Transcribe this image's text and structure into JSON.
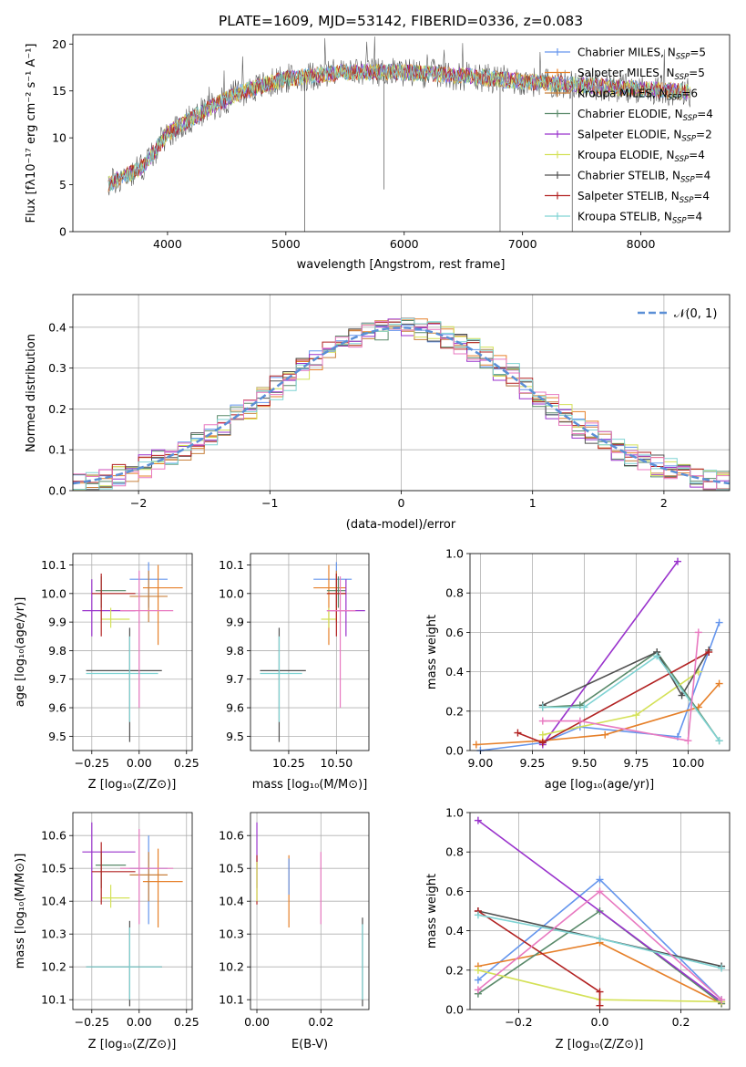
{
  "colors": {
    "chabrier_miles": "#6495ed",
    "salpeter_miles": "#e6802a",
    "kroupa_miles": "#c8803c",
    "chabrier_elodie": "#5a8a6a",
    "salpeter_elodie": "#9932cc",
    "kroupa_elodie": "#d4e157",
    "chabrier_stelib": "#505050",
    "salpeter_stelib": "#b22222",
    "kroupa_stelib": "#7fd3d3",
    "pink": "#e879c0",
    "gauss": "#5b8fd6"
  },
  "chart_data": [
    {
      "id": "spectrum",
      "type": "line",
      "title": "PLATE=1609, MJD=53142, FIBERID=0336, z=0.083",
      "xlabel": "wavelength [Angstrom, rest frame]",
      "ylabel": "Flux [fλ10⁻¹⁷ erg cm⁻² s⁻¹ A⁻¹]",
      "xlim": [
        3200,
        8750
      ],
      "ylim": [
        0,
        21
      ],
      "xticks": [
        4000,
        5000,
        6000,
        7000,
        8000
      ],
      "yticks": [
        0,
        5,
        10,
        15,
        20
      ],
      "legend_position": "right",
      "legend": [
        {
          "name": "Chabrier MILES, N_SSP=5",
          "text": "Chabrier MILES, N",
          "sub": "SSP",
          "tail": "=5",
          "color_key": "chabrier_miles"
        },
        {
          "name": "Salpeter MILES, N_SSP=5",
          "text": "Salpeter MILES, N",
          "sub": "SSP",
          "tail": "=5",
          "color_key": "salpeter_miles"
        },
        {
          "name": "Kroupa MILES, N_SSP=6",
          "text": "Kroupa MILES, N",
          "sub": "SSP",
          "tail": "=6",
          "color_key": "kroupa_miles"
        },
        {
          "name": "Chabrier ELODIE, N_SSP=4",
          "text": "Chabrier ELODIE, N",
          "sub": "SSP",
          "tail": "=4",
          "color_key": "chabrier_elodie"
        },
        {
          "name": "Salpeter ELODIE, N_SSP=2",
          "text": "Salpeter ELODIE, N",
          "sub": "SSP",
          "tail": "=2",
          "color_key": "salpeter_elodie"
        },
        {
          "name": "Kroupa ELODIE, N_SSP=4",
          "text": "Kroupa ELODIE, N",
          "sub": "SSP",
          "tail": "=4",
          "color_key": "kroupa_elodie"
        },
        {
          "name": "Chabrier STELIB, N_SSP=4",
          "text": "Chabrier STELIB, N",
          "sub": "SSP",
          "tail": "=4",
          "color_key": "chabrier_stelib"
        },
        {
          "name": "Salpeter STELIB, N_SSP=4",
          "text": "Salpeter STELIB, N",
          "sub": "SSP",
          "tail": "=4",
          "color_key": "salpeter_stelib"
        },
        {
          "name": "Kroupa STELIB, N_SSP=4",
          "text": "Kroupa STELIB, N",
          "sub": "SSP",
          "tail": "=4",
          "color_key": "kroupa_stelib"
        }
      ],
      "continuum": [
        [
          3500,
          5.0
        ],
        [
          3800,
          7.0
        ],
        [
          4000,
          10.5
        ],
        [
          4300,
          12.8
        ],
        [
          4600,
          14.8
        ],
        [
          5000,
          16.3
        ],
        [
          5500,
          17.0
        ],
        [
          6000,
          17.0
        ],
        [
          6500,
          16.6
        ],
        [
          7000,
          16.0
        ],
        [
          7500,
          15.6
        ],
        [
          8000,
          15.2
        ],
        [
          8500,
          14.8
        ]
      ],
      "drops": [
        [
          5160,
          0
        ],
        [
          5830,
          4.5
        ],
        [
          6810,
          0
        ],
        [
          7420,
          0
        ]
      ]
    },
    {
      "id": "residuals",
      "type": "step-histogram",
      "xlabel": "(data-model)/error",
      "ylabel": "Normed distribution",
      "xlim": [
        -2.5,
        2.5
      ],
      "ylim": [
        0,
        0.48
      ],
      "xticks": [
        -2,
        -1,
        0,
        1,
        2
      ],
      "xtick_labels": [
        "−2",
        "−1",
        "0",
        "1",
        "2"
      ],
      "yticks": [
        0.0,
        0.1,
        0.2,
        0.3,
        0.4
      ],
      "bin_width": 0.1,
      "legend_position": "top-right",
      "legend": [
        {
          "name": "N(0,1)",
          "text": "𝒩(0, 1)",
          "color_key": "gauss"
        }
      ]
    },
    {
      "id": "z-age",
      "type": "errorbar",
      "xlabel": "Z [log₁₀(Z/Z⊙)]",
      "ylabel": "age  [log₁₀(age/yr)]",
      "xlim": [
        -0.35,
        0.28
      ],
      "ylim": [
        9.45,
        10.14
      ],
      "xticks": [
        -0.25,
        0.0,
        0.25
      ],
      "xtick_labels": [
        "−0.25",
        "0.00",
        "0.25"
      ],
      "yticks": [
        9.5,
        9.6,
        9.7,
        9.8,
        9.9,
        10.0,
        10.1
      ],
      "ytick_labels": [
        "9.5",
        "9.6",
        "9.7",
        "9.8",
        "9.9",
        "10.0",
        "10.1"
      ],
      "points": [
        {
          "x": 0.05,
          "y": 10.05,
          "xlo": -0.05,
          "xhi": 0.15,
          "ylo": 9.95,
          "yhi": 10.11,
          "color_key": "chabrier_miles"
        },
        {
          "x": 0.1,
          "y": 10.02,
          "xlo": 0.02,
          "xhi": 0.23,
          "ylo": 9.82,
          "yhi": 10.1,
          "color_key": "salpeter_miles"
        },
        {
          "x": 0.05,
          "y": 9.99,
          "xlo": -0.05,
          "xhi": 0.15,
          "ylo": 9.9,
          "yhi": 10.08,
          "color_key": "kroupa_miles"
        },
        {
          "x": -0.2,
          "y": 10.01,
          "xlo": -0.23,
          "xhi": -0.07,
          "ylo": 9.95,
          "yhi": 10.06,
          "color_key": "chabrier_elodie"
        },
        {
          "x": -0.25,
          "y": 9.94,
          "xlo": -0.3,
          "xhi": -0.02,
          "ylo": 9.85,
          "yhi": 10.05,
          "color_key": "salpeter_elodie"
        },
        {
          "x": -0.15,
          "y": 9.91,
          "xlo": -0.2,
          "xhi": -0.05,
          "ylo": 9.88,
          "yhi": 9.95,
          "color_key": "kroupa_elodie"
        },
        {
          "x": -0.05,
          "y": 9.73,
          "xlo": -0.28,
          "xhi": 0.12,
          "ylo": 9.48,
          "yhi": 9.88,
          "color_key": "chabrier_stelib"
        },
        {
          "x": -0.2,
          "y": 10.0,
          "xlo": -0.25,
          "xhi": -0.02,
          "ylo": 9.85,
          "yhi": 10.07,
          "color_key": "salpeter_stelib"
        },
        {
          "x": -0.05,
          "y": 9.72,
          "xlo": -0.28,
          "xhi": 0.1,
          "ylo": 9.55,
          "yhi": 9.85,
          "color_key": "kroupa_stelib"
        },
        {
          "x": 0.0,
          "y": 9.94,
          "xlo": -0.1,
          "xhi": 0.18,
          "ylo": 9.6,
          "yhi": 10.08,
          "color_key": "pink"
        }
      ]
    },
    {
      "id": "mass-age",
      "type": "errorbar",
      "xlabel": "mass [log₁₀(M/M⊙)]",
      "ylabel": "",
      "xlim": [
        10.05,
        10.67
      ],
      "ylim": [
        9.45,
        10.14
      ],
      "xticks": [
        10.25,
        10.5
      ],
      "xtick_labels": [
        "10.25",
        "10.50"
      ],
      "yticks": [
        9.5,
        9.6,
        9.7,
        9.8,
        9.9,
        10.0,
        10.1
      ],
      "ytick_labels": [
        "9.5",
        "9.6",
        "9.7",
        "9.8",
        "9.9",
        "10.0",
        "10.1"
      ],
      "points": [
        {
          "x": 10.5,
          "y": 10.05,
          "xlo": 10.38,
          "xhi": 10.58,
          "ylo": 9.95,
          "yhi": 10.11,
          "color_key": "chabrier_miles"
        },
        {
          "x": 10.46,
          "y": 10.02,
          "xlo": 10.38,
          "xhi": 10.55,
          "ylo": 9.82,
          "yhi": 10.1,
          "color_key": "salpeter_miles"
        },
        {
          "x": 10.5,
          "y": 10.0,
          "xlo": 10.45,
          "xhi": 10.55,
          "ylo": 9.9,
          "yhi": 10.08,
          "color_key": "kroupa_miles"
        },
        {
          "x": 10.51,
          "y": 10.01,
          "xlo": 10.45,
          "xhi": 10.55,
          "ylo": 9.95,
          "yhi": 10.06,
          "color_key": "chabrier_elodie"
        },
        {
          "x": 10.55,
          "y": 9.94,
          "xlo": 10.45,
          "xhi": 10.65,
          "ylo": 9.85,
          "yhi": 10.05,
          "color_key": "salpeter_elodie"
        },
        {
          "x": 10.46,
          "y": 9.91,
          "xlo": 10.42,
          "xhi": 10.5,
          "ylo": 9.88,
          "yhi": 9.95,
          "color_key": "kroupa_elodie"
        },
        {
          "x": 10.2,
          "y": 9.73,
          "xlo": 10.1,
          "xhi": 10.34,
          "ylo": 9.48,
          "yhi": 9.88,
          "color_key": "chabrier_stelib"
        },
        {
          "x": 10.5,
          "y": 10.0,
          "xlo": 10.45,
          "xhi": 10.55,
          "ylo": 9.85,
          "yhi": 10.07,
          "color_key": "salpeter_stelib"
        },
        {
          "x": 10.2,
          "y": 9.72,
          "xlo": 10.1,
          "xhi": 10.32,
          "ylo": 9.55,
          "yhi": 9.85,
          "color_key": "kroupa_stelib"
        },
        {
          "x": 10.52,
          "y": 9.94,
          "xlo": 10.45,
          "xhi": 10.6,
          "ylo": 9.6,
          "yhi": 10.06,
          "color_key": "pink"
        }
      ]
    },
    {
      "id": "age-weight",
      "type": "line",
      "xlabel": "age  [log₁₀(age/yr)]",
      "ylabel": "mass weight",
      "xlim": [
        8.95,
        10.2
      ],
      "ylim": [
        0,
        1.0
      ],
      "xticks": [
        9.0,
        9.25,
        9.5,
        9.75,
        10.0
      ],
      "xtick_labels": [
        "9.00",
        "9.25",
        "9.50",
        "9.75",
        "10.00"
      ],
      "yticks": [
        0.0,
        0.2,
        0.4,
        0.6,
        0.8,
        1.0
      ],
      "ytick_labels": [
        "0.0",
        "0.2",
        "0.4",
        "0.6",
        "0.8",
        "1.0"
      ],
      "series": [
        {
          "color_key": "chabrier_miles",
          "x": [
            9.0,
            9.3,
            9.48,
            9.95,
            10.15
          ],
          "y": [
            0.0,
            0.04,
            0.12,
            0.07,
            0.65
          ]
        },
        {
          "color_key": "salpeter_miles",
          "x": [
            8.98,
            9.3,
            9.6,
            10.05,
            10.15
          ],
          "y": [
            0.03,
            0.05,
            0.08,
            0.22,
            0.34
          ]
        },
        {
          "color_key": "chabrier_elodie",
          "x": [
            9.3,
            9.48,
            9.85,
            10.15
          ],
          "y": [
            0.22,
            0.23,
            0.5,
            0.05
          ]
        },
        {
          "color_key": "salpeter_elodie",
          "x": [
            9.3,
            9.95
          ],
          "y": [
            0.03,
            0.96
          ]
        },
        {
          "color_key": "kroupa_elodie",
          "x": [
            9.3,
            9.75,
            10.05
          ],
          "y": [
            0.08,
            0.18,
            0.4
          ]
        },
        {
          "color_key": "chabrier_stelib",
          "x": [
            9.3,
            9.85,
            9.97,
            10.1
          ],
          "y": [
            0.23,
            0.5,
            0.28,
            0.51
          ]
        },
        {
          "color_key": "salpeter_stelib",
          "x": [
            9.18,
            9.3,
            10.1
          ],
          "y": [
            0.09,
            0.04,
            0.5
          ]
        },
        {
          "color_key": "kroupa_stelib",
          "x": [
            9.3,
            9.5,
            9.85,
            10.15
          ],
          "y": [
            0.22,
            0.22,
            0.48,
            0.05
          ]
        },
        {
          "color_key": "pink",
          "x": [
            9.3,
            9.48,
            10.0,
            10.05
          ],
          "y": [
            0.15,
            0.15,
            0.05,
            0.6
          ]
        }
      ]
    },
    {
      "id": "z-mass",
      "type": "errorbar",
      "xlabel": "Z [log₁₀(Z/Z⊙)]",
      "ylabel": "mass [log₁₀(M/M⊙)]",
      "xlim": [
        -0.35,
        0.28
      ],
      "ylim": [
        10.07,
        10.67
      ],
      "xticks": [
        -0.25,
        0.0,
        0.25
      ],
      "xtick_labels": [
        "−0.25",
        "0.00",
        "0.25"
      ],
      "yticks": [
        10.1,
        10.2,
        10.3,
        10.4,
        10.5,
        10.6
      ],
      "ytick_labels": [
        "10.1",
        "10.2",
        "10.3",
        "10.4",
        "10.5",
        "10.6"
      ],
      "points": [
        {
          "x": 0.05,
          "y": 10.5,
          "xlo": -0.05,
          "xhi": 0.15,
          "ylo": 10.33,
          "yhi": 10.6,
          "color_key": "chabrier_miles"
        },
        {
          "x": 0.1,
          "y": 10.46,
          "xlo": 0.02,
          "xhi": 0.23,
          "ylo": 10.32,
          "yhi": 10.56,
          "color_key": "salpeter_miles"
        },
        {
          "x": 0.05,
          "y": 10.48,
          "xlo": -0.05,
          "xhi": 0.15,
          "ylo": 10.4,
          "yhi": 10.55,
          "color_key": "kroupa_miles"
        },
        {
          "x": -0.2,
          "y": 10.51,
          "xlo": -0.23,
          "xhi": -0.07,
          "ylo": 10.44,
          "yhi": 10.55,
          "color_key": "chabrier_elodie"
        },
        {
          "x": -0.25,
          "y": 10.55,
          "xlo": -0.3,
          "xhi": -0.02,
          "ylo": 10.4,
          "yhi": 10.64,
          "color_key": "salpeter_elodie"
        },
        {
          "x": -0.15,
          "y": 10.41,
          "xlo": -0.2,
          "xhi": -0.05,
          "ylo": 10.38,
          "yhi": 10.45,
          "color_key": "kroupa_elodie"
        },
        {
          "x": -0.05,
          "y": 10.2,
          "xlo": -0.28,
          "xhi": 0.12,
          "ylo": 10.08,
          "yhi": 10.34,
          "color_key": "chabrier_stelib"
        },
        {
          "x": -0.2,
          "y": 10.49,
          "xlo": -0.25,
          "xhi": -0.02,
          "ylo": 10.39,
          "yhi": 10.58,
          "color_key": "salpeter_stelib"
        },
        {
          "x": -0.05,
          "y": 10.2,
          "xlo": -0.28,
          "xhi": 0.12,
          "ylo": 10.1,
          "yhi": 10.32,
          "color_key": "kroupa_stelib"
        },
        {
          "x": 0.0,
          "y": 10.5,
          "xlo": -0.1,
          "xhi": 0.18,
          "ylo": 10.33,
          "yhi": 10.62,
          "color_key": "pink"
        }
      ]
    },
    {
      "id": "ebv-mass",
      "type": "errorbar",
      "xlabel": "E(B-V)",
      "ylabel": "",
      "xlim": [
        -0.002,
        0.035
      ],
      "ylim": [
        10.07,
        10.67
      ],
      "xticks": [
        0.0,
        0.02
      ],
      "xtick_labels": [
        "0.00",
        "0.02"
      ],
      "yticks": [
        10.1,
        10.2,
        10.3,
        10.4,
        10.5,
        10.6
      ],
      "ytick_labels": [
        "10.1",
        "10.2",
        "10.3",
        "10.4",
        "10.5",
        "10.6"
      ],
      "points": [
        {
          "x": 0.0,
          "y": 10.55,
          "ylo": 10.44,
          "yhi": 10.64,
          "color_key": "salpeter_elodie"
        },
        {
          "x": 0.0,
          "y": 10.49,
          "ylo": 10.39,
          "yhi": 10.54,
          "color_key": "salpeter_stelib"
        },
        {
          "x": 0.0,
          "y": 10.46,
          "ylo": 10.4,
          "yhi": 10.52,
          "color_key": "kroupa_elodie"
        },
        {
          "x": 0.01,
          "y": 10.46,
          "ylo": 10.32,
          "yhi": 10.54,
          "color_key": "salpeter_miles"
        },
        {
          "x": 0.01,
          "y": 10.5,
          "ylo": 10.42,
          "yhi": 10.53,
          "color_key": "chabrier_miles"
        },
        {
          "x": 0.02,
          "y": 10.5,
          "ylo": 10.33,
          "yhi": 10.55,
          "color_key": "pink"
        },
        {
          "x": 0.033,
          "y": 10.2,
          "ylo": 10.08,
          "yhi": 10.35,
          "color_key": "chabrier_stelib"
        },
        {
          "x": 0.033,
          "y": 10.2,
          "ylo": 10.1,
          "yhi": 10.33,
          "color_key": "kroupa_stelib"
        }
      ]
    },
    {
      "id": "z-weight",
      "type": "line",
      "xlabel": "Z [log₁₀(Z/Z⊙)]",
      "ylabel": "mass weight",
      "xlim": [
        -0.32,
        0.32
      ],
      "ylim": [
        0,
        1.0
      ],
      "xticks": [
        -0.2,
        0.0,
        0.2
      ],
      "xtick_labels": [
        "−0.2",
        "0.0",
        "0.2"
      ],
      "yticks": [
        0.0,
        0.2,
        0.4,
        0.6,
        0.8,
        1.0
      ],
      "ytick_labels": [
        "0.0",
        "0.2",
        "0.4",
        "0.6",
        "0.8",
        "1.0"
      ],
      "series": [
        {
          "color_key": "chabrier_miles",
          "x": [
            -0.3,
            0.0,
            0.3
          ],
          "y": [
            0.15,
            0.66,
            0.05
          ]
        },
        {
          "color_key": "salpeter_miles",
          "x": [
            -0.3,
            0.0,
            0.3
          ],
          "y": [
            0.22,
            0.34,
            0.03
          ]
        },
        {
          "color_key": "chabrier_elodie",
          "x": [
            -0.3,
            0.0,
            0.3
          ],
          "y": [
            0.08,
            0.5,
            0.03
          ]
        },
        {
          "color_key": "salpeter_elodie",
          "x": [
            -0.3,
            0.3
          ],
          "y": [
            0.96,
            0.04
          ]
        },
        {
          "color_key": "kroupa_elodie",
          "x": [
            -0.3,
            0.0,
            0.3
          ],
          "y": [
            0.2,
            0.05,
            0.04
          ]
        },
        {
          "color_key": "chabrier_stelib",
          "x": [
            -0.3,
            0.0,
            0.3
          ],
          "y": [
            0.5,
            0.36,
            0.22
          ]
        },
        {
          "color_key": "salpeter_stelib",
          "x": [
            -0.3,
            0.0,
            0.0
          ],
          "y": [
            0.5,
            0.09,
            0.02
          ]
        },
        {
          "color_key": "kroupa_stelib",
          "x": [
            -0.3,
            0.0,
            0.3
          ],
          "y": [
            0.48,
            0.36,
            0.21
          ]
        },
        {
          "color_key": "pink",
          "x": [
            -0.3,
            0.0,
            0.3
          ],
          "y": [
            0.1,
            0.6,
            0.05
          ]
        }
      ]
    }
  ]
}
